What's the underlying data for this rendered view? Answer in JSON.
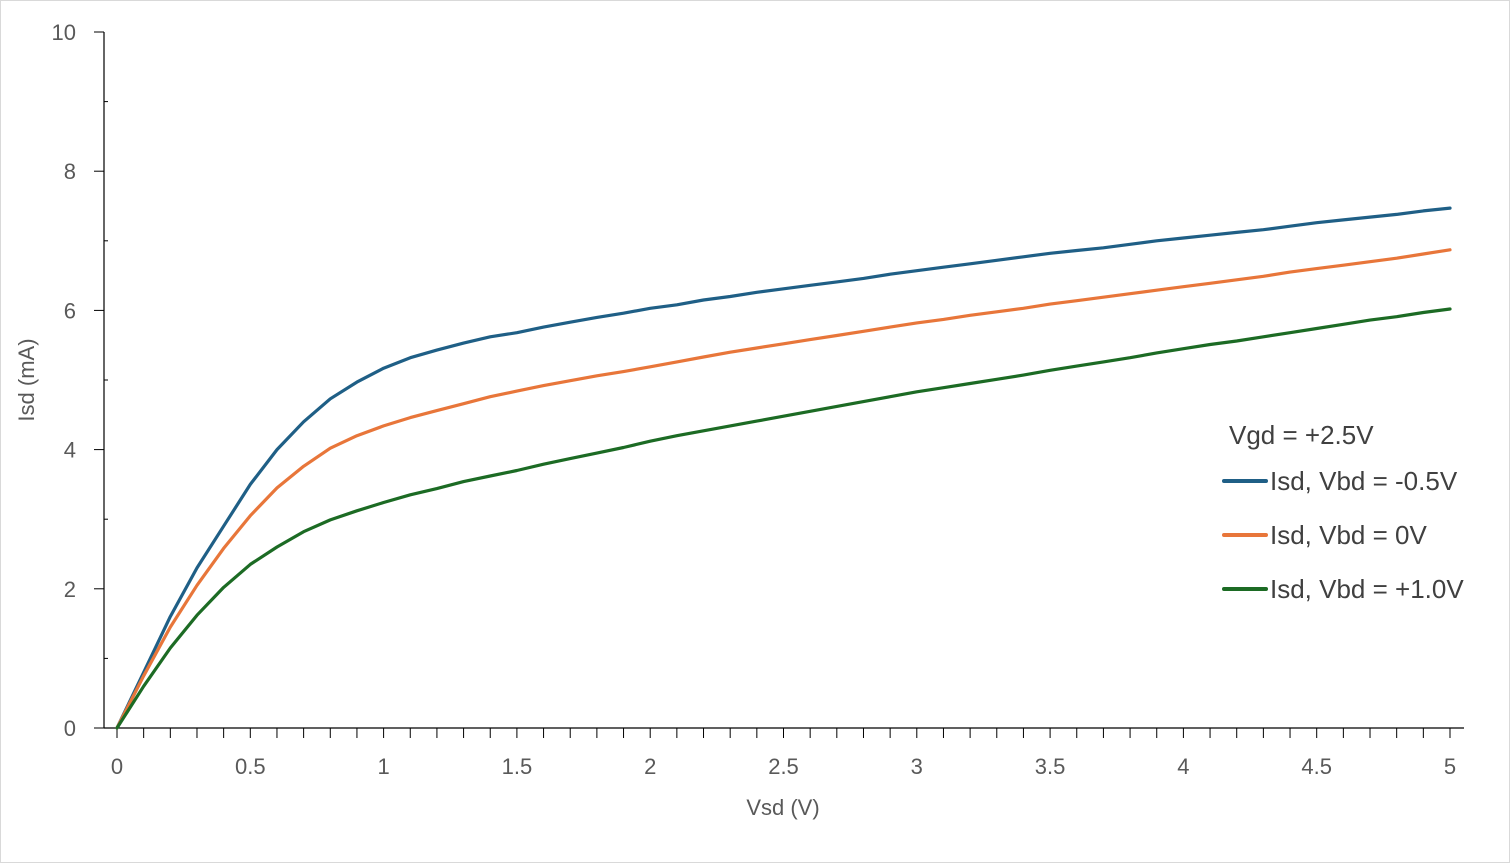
{
  "chart_data": {
    "type": "line",
    "title": "",
    "xlabel": "Vsd (V)",
    "ylabel": "Isd  (mA)",
    "xlim": [
      0,
      5
    ],
    "ylim": [
      0,
      10
    ],
    "x_ticks": [
      "0",
      "0.5",
      "1",
      "1.5",
      "2",
      "2.5",
      "3",
      "3.5",
      "4",
      "4.5",
      "5"
    ],
    "y_ticks": [
      "0",
      "2",
      "4",
      "6",
      "8",
      "10"
    ],
    "grid": false,
    "legend_position": "right",
    "legend_title": "Vgd = +2.5V",
    "x": [
      0,
      0.1,
      0.2,
      0.3,
      0.4,
      0.5,
      0.6,
      0.7,
      0.8,
      0.9,
      1.0,
      1.1,
      1.2,
      1.3,
      1.4,
      1.5,
      1.6,
      1.7,
      1.8,
      1.9,
      2.0,
      2.1,
      2.2,
      2.3,
      2.4,
      2.5,
      2.6,
      2.7,
      2.8,
      2.9,
      3.0,
      3.1,
      3.2,
      3.3,
      3.4,
      3.5,
      3.6,
      3.7,
      3.8,
      3.9,
      4.0,
      4.1,
      4.2,
      4.3,
      4.4,
      4.5,
      4.6,
      4.7,
      4.8,
      4.9,
      5.0
    ],
    "series": [
      {
        "name": "Isd, Vbd = -0.5V",
        "color": "#1f5f86",
        "values": [
          0,
          0.8,
          1.6,
          2.3,
          2.9,
          3.5,
          4.0,
          4.4,
          4.73,
          4.97,
          5.17,
          5.32,
          5.43,
          5.53,
          5.62,
          5.68,
          5.76,
          5.83,
          5.9,
          5.96,
          6.03,
          6.08,
          6.15,
          6.2,
          6.26,
          6.31,
          6.36,
          6.41,
          6.46,
          6.52,
          6.57,
          6.62,
          6.67,
          6.72,
          6.77,
          6.82,
          6.86,
          6.9,
          6.95,
          7.0,
          7.04,
          7.08,
          7.12,
          7.16,
          7.21,
          7.26,
          7.3,
          7.34,
          7.38,
          7.43,
          7.47
        ]
      },
      {
        "name": "Isd, Vbd = 0V",
        "color": "#e8763a",
        "values": [
          0,
          0.75,
          1.45,
          2.05,
          2.58,
          3.05,
          3.45,
          3.76,
          4.02,
          4.2,
          4.34,
          4.46,
          4.56,
          4.66,
          4.76,
          4.84,
          4.92,
          4.99,
          5.06,
          5.12,
          5.19,
          5.26,
          5.33,
          5.4,
          5.46,
          5.52,
          5.58,
          5.64,
          5.7,
          5.76,
          5.82,
          5.87,
          5.93,
          5.98,
          6.03,
          6.09,
          6.14,
          6.19,
          6.24,
          6.29,
          6.34,
          6.39,
          6.44,
          6.49,
          6.55,
          6.6,
          6.65,
          6.7,
          6.75,
          6.81,
          6.87
        ]
      },
      {
        "name": "Isd, Vbd = +1.0V",
        "color": "#1c6b24",
        "values": [
          0,
          0.6,
          1.15,
          1.62,
          2.02,
          2.35,
          2.6,
          2.82,
          2.99,
          3.12,
          3.24,
          3.35,
          3.44,
          3.54,
          3.62,
          3.7,
          3.79,
          3.87,
          3.95,
          4.03,
          4.12,
          4.2,
          4.27,
          4.34,
          4.41,
          4.48,
          4.55,
          4.62,
          4.69,
          4.76,
          4.83,
          4.89,
          4.95,
          5.01,
          5.07,
          5.14,
          5.2,
          5.26,
          5.32,
          5.39,
          5.45,
          5.51,
          5.56,
          5.62,
          5.68,
          5.74,
          5.8,
          5.86,
          5.91,
          5.97,
          6.02
        ]
      }
    ]
  }
}
